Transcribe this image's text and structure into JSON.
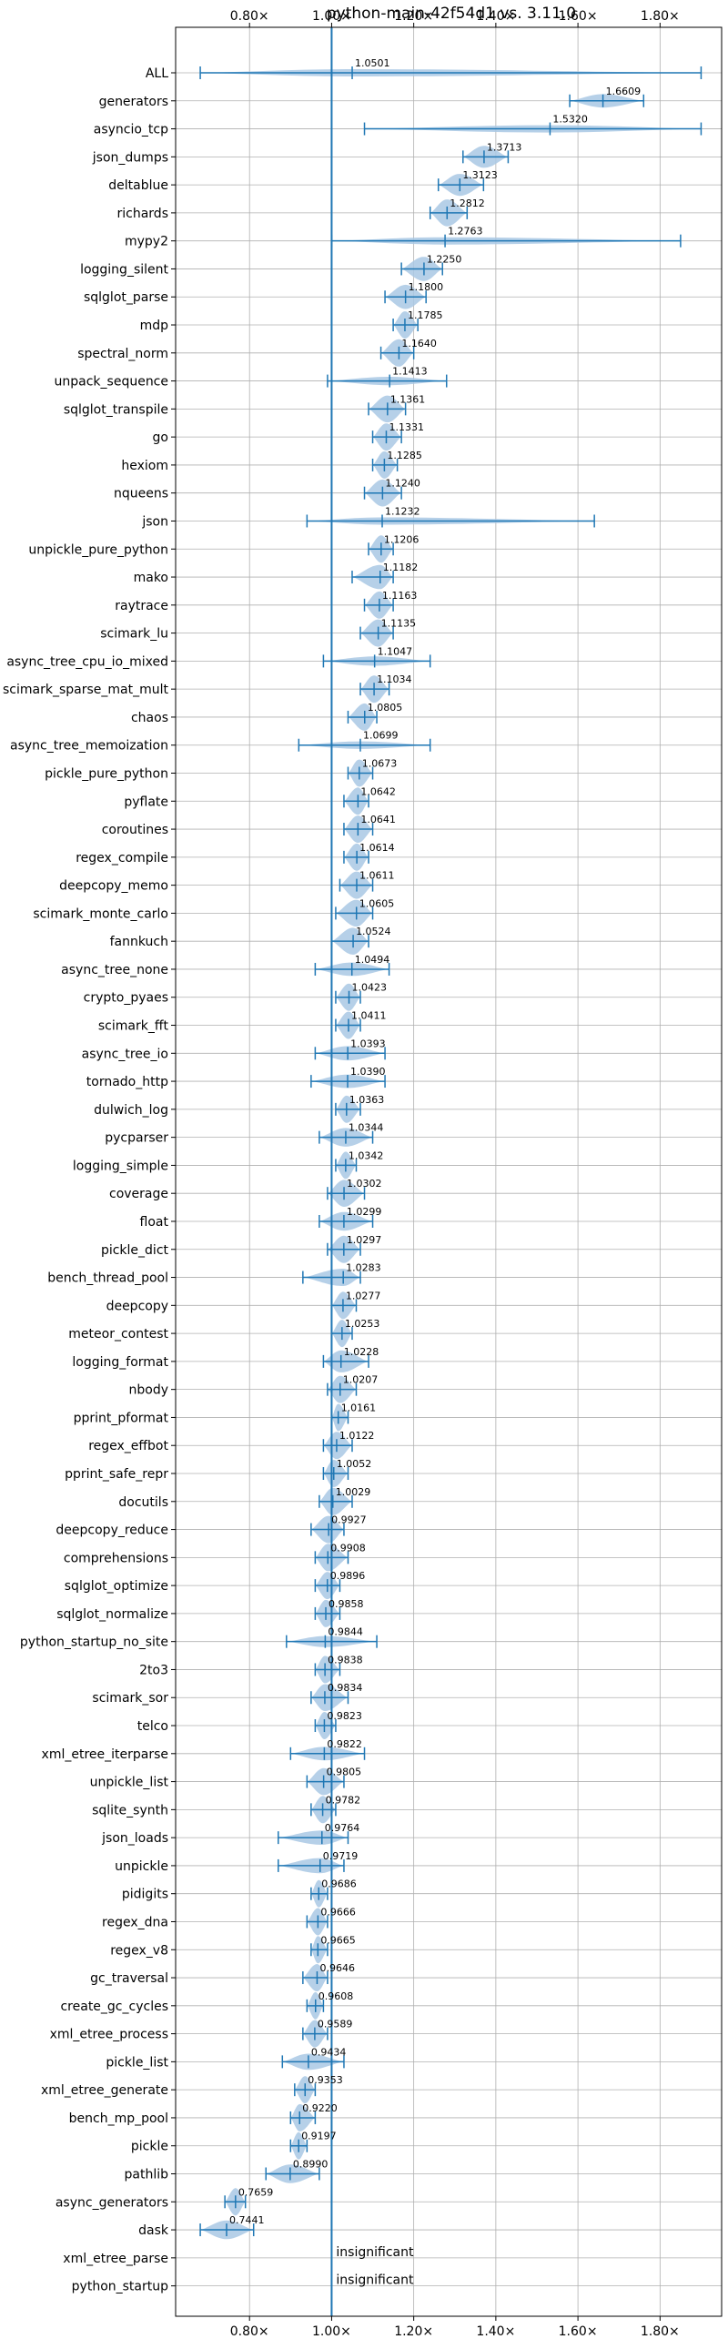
{
  "chart_data": {
    "type": "violin",
    "title": "python-main-42f54d1 vs. 3.11.0",
    "xlabel": "",
    "ylabel": "",
    "xlim": [
      0.62,
      1.95
    ],
    "x_ticks": [
      0.8,
      1.0,
      1.2,
      1.4,
      1.6,
      1.8
    ],
    "x_tick_labels": [
      "0.80×",
      "1.00×",
      "1.20×",
      "1.40×",
      "1.60×",
      "1.80×"
    ],
    "reference_line": 1.0,
    "grid": true,
    "colors": {
      "violin": "#a9c8e4",
      "stroke": "#1f77b4",
      "reference": "#1f77b4",
      "grid": "#b0b0b0"
    },
    "benchmarks": [
      {
        "name": "ALL",
        "value": 1.0501,
        "label": "1.0501",
        "min": 0.68,
        "max": 1.9
      },
      {
        "name": "generators",
        "value": 1.6609,
        "label": "1.6609",
        "min": 1.58,
        "max": 1.76
      },
      {
        "name": "asyncio_tcp",
        "value": 1.532,
        "label": "1.5320",
        "min": 1.08,
        "max": 1.9
      },
      {
        "name": "json_dumps",
        "value": 1.3713,
        "label": "1.3713",
        "min": 1.32,
        "max": 1.43
      },
      {
        "name": "deltablue",
        "value": 1.3123,
        "label": "1.3123",
        "min": 1.26,
        "max": 1.37
      },
      {
        "name": "richards",
        "value": 1.2812,
        "label": "1.2812",
        "min": 1.24,
        "max": 1.33
      },
      {
        "name": "mypy2",
        "value": 1.2763,
        "label": "1.2763",
        "min": 1.0,
        "max": 1.85
      },
      {
        "name": "logging_silent",
        "value": 1.225,
        "label": "1.2250",
        "min": 1.17,
        "max": 1.27
      },
      {
        "name": "sqlglot_parse",
        "value": 1.18,
        "label": "1.1800",
        "min": 1.13,
        "max": 1.23
      },
      {
        "name": "mdp",
        "value": 1.1785,
        "label": "1.1785",
        "min": 1.15,
        "max": 1.21
      },
      {
        "name": "spectral_norm",
        "value": 1.164,
        "label": "1.1640",
        "min": 1.12,
        "max": 1.2
      },
      {
        "name": "unpack_sequence",
        "value": 1.1413,
        "label": "1.1413",
        "min": 0.99,
        "max": 1.28
      },
      {
        "name": "sqlglot_transpile",
        "value": 1.1361,
        "label": "1.1361",
        "min": 1.09,
        "max": 1.18
      },
      {
        "name": "go",
        "value": 1.1331,
        "label": "1.1331",
        "min": 1.1,
        "max": 1.17
      },
      {
        "name": "hexiom",
        "value": 1.1285,
        "label": "1.1285",
        "min": 1.1,
        "max": 1.16
      },
      {
        "name": "nqueens",
        "value": 1.124,
        "label": "1.1240",
        "min": 1.08,
        "max": 1.17
      },
      {
        "name": "json",
        "value": 1.1232,
        "label": "1.1232",
        "min": 0.94,
        "max": 1.64
      },
      {
        "name": "unpickle_pure_python",
        "value": 1.1206,
        "label": "1.1206",
        "min": 1.09,
        "max": 1.15
      },
      {
        "name": "mako",
        "value": 1.1182,
        "label": "1.1182",
        "min": 1.05,
        "max": 1.15
      },
      {
        "name": "raytrace",
        "value": 1.1163,
        "label": "1.1163",
        "min": 1.08,
        "max": 1.15
      },
      {
        "name": "scimark_lu",
        "value": 1.1135,
        "label": "1.1135",
        "min": 1.07,
        "max": 1.15
      },
      {
        "name": "async_tree_cpu_io_mixed",
        "value": 1.1047,
        "label": "1.1047",
        "min": 0.98,
        "max": 1.24
      },
      {
        "name": "scimark_sparse_mat_mult",
        "value": 1.1034,
        "label": "1.1034",
        "min": 1.07,
        "max": 1.14
      },
      {
        "name": "chaos",
        "value": 1.0805,
        "label": "1.0805",
        "min": 1.04,
        "max": 1.11
      },
      {
        "name": "async_tree_memoization",
        "value": 1.0699,
        "label": "1.0699",
        "min": 0.92,
        "max": 1.24
      },
      {
        "name": "pickle_pure_python",
        "value": 1.0673,
        "label": "1.0673",
        "min": 1.04,
        "max": 1.1
      },
      {
        "name": "pyflate",
        "value": 1.0642,
        "label": "1.0642",
        "min": 1.03,
        "max": 1.09
      },
      {
        "name": "coroutines",
        "value": 1.0641,
        "label": "1.0641",
        "min": 1.03,
        "max": 1.1
      },
      {
        "name": "regex_compile",
        "value": 1.0614,
        "label": "1.0614",
        "min": 1.03,
        "max": 1.09
      },
      {
        "name": "deepcopy_memo",
        "value": 1.0611,
        "label": "1.0611",
        "min": 1.02,
        "max": 1.1
      },
      {
        "name": "scimark_monte_carlo",
        "value": 1.0605,
        "label": "1.0605",
        "min": 1.01,
        "max": 1.1
      },
      {
        "name": "fannkuch",
        "value": 1.0524,
        "label": "1.0524",
        "min": 1.0,
        "max": 1.09
      },
      {
        "name": "async_tree_none",
        "value": 1.0494,
        "label": "1.0494",
        "min": 0.96,
        "max": 1.14
      },
      {
        "name": "crypto_pyaes",
        "value": 1.0423,
        "label": "1.0423",
        "min": 1.01,
        "max": 1.07
      },
      {
        "name": "scimark_fft",
        "value": 1.0411,
        "label": "1.0411",
        "min": 1.01,
        "max": 1.07
      },
      {
        "name": "async_tree_io",
        "value": 1.0393,
        "label": "1.0393",
        "min": 0.96,
        "max": 1.13
      },
      {
        "name": "tornado_http",
        "value": 1.039,
        "label": "1.0390",
        "min": 0.95,
        "max": 1.13
      },
      {
        "name": "dulwich_log",
        "value": 1.0363,
        "label": "1.0363",
        "min": 1.01,
        "max": 1.07
      },
      {
        "name": "pycparser",
        "value": 1.0344,
        "label": "1.0344",
        "min": 0.97,
        "max": 1.1
      },
      {
        "name": "logging_simple",
        "value": 1.0342,
        "label": "1.0342",
        "min": 1.01,
        "max": 1.06
      },
      {
        "name": "coverage",
        "value": 1.0302,
        "label": "1.0302",
        "min": 0.99,
        "max": 1.08
      },
      {
        "name": "float",
        "value": 1.0299,
        "label": "1.0299",
        "min": 0.97,
        "max": 1.1
      },
      {
        "name": "pickle_dict",
        "value": 1.0297,
        "label": "1.0297",
        "min": 0.99,
        "max": 1.07
      },
      {
        "name": "bench_thread_pool",
        "value": 1.0283,
        "label": "1.0283",
        "min": 0.93,
        "max": 1.07
      },
      {
        "name": "deepcopy",
        "value": 1.0277,
        "label": "1.0277",
        "min": 1.0,
        "max": 1.06
      },
      {
        "name": "meteor_contest",
        "value": 1.0253,
        "label": "1.0253",
        "min": 1.0,
        "max": 1.05
      },
      {
        "name": "logging_format",
        "value": 1.0228,
        "label": "1.0228",
        "min": 0.98,
        "max": 1.09
      },
      {
        "name": "nbody",
        "value": 1.0207,
        "label": "1.0207",
        "min": 0.99,
        "max": 1.06
      },
      {
        "name": "pprint_pformat",
        "value": 1.0161,
        "label": "1.0161",
        "min": 1.0,
        "max": 1.04
      },
      {
        "name": "regex_effbot",
        "value": 1.0122,
        "label": "1.0122",
        "min": 0.98,
        "max": 1.05
      },
      {
        "name": "pprint_safe_repr",
        "value": 1.0052,
        "label": "1.0052",
        "min": 0.98,
        "max": 1.04
      },
      {
        "name": "docutils",
        "value": 1.0029,
        "label": "1.0029",
        "min": 0.97,
        "max": 1.05
      },
      {
        "name": "deepcopy_reduce",
        "value": 0.9927,
        "label": "0.9927",
        "min": 0.95,
        "max": 1.03
      },
      {
        "name": "comprehensions",
        "value": 0.9908,
        "label": "0.9908",
        "min": 0.96,
        "max": 1.04
      },
      {
        "name": "sqlglot_optimize",
        "value": 0.9896,
        "label": "0.9896",
        "min": 0.96,
        "max": 1.02
      },
      {
        "name": "sqlglot_normalize",
        "value": 0.9858,
        "label": "0.9858",
        "min": 0.96,
        "max": 1.02
      },
      {
        "name": "python_startup_no_site",
        "value": 0.9844,
        "label": "0.9844",
        "min": 0.89,
        "max": 1.11
      },
      {
        "name": "2to3",
        "value": 0.9838,
        "label": "0.9838",
        "min": 0.96,
        "max": 1.02
      },
      {
        "name": "scimark_sor",
        "value": 0.9834,
        "label": "0.9834",
        "min": 0.95,
        "max": 1.04
      },
      {
        "name": "telco",
        "value": 0.9823,
        "label": "0.9823",
        "min": 0.96,
        "max": 1.01
      },
      {
        "name": "xml_etree_iterparse",
        "value": 0.9822,
        "label": "0.9822",
        "min": 0.9,
        "max": 1.08
      },
      {
        "name": "unpickle_list",
        "value": 0.9805,
        "label": "0.9805",
        "min": 0.94,
        "max": 1.03
      },
      {
        "name": "sqlite_synth",
        "value": 0.9782,
        "label": "0.9782",
        "min": 0.95,
        "max": 1.01
      },
      {
        "name": "json_loads",
        "value": 0.9764,
        "label": "0.9764",
        "min": 0.87,
        "max": 1.04
      },
      {
        "name": "unpickle",
        "value": 0.9719,
        "label": "0.9719",
        "min": 0.87,
        "max": 1.03
      },
      {
        "name": "pidigits",
        "value": 0.9686,
        "label": "0.9686",
        "min": 0.95,
        "max": 0.99
      },
      {
        "name": "regex_dna",
        "value": 0.9666,
        "label": "0.9666",
        "min": 0.94,
        "max": 0.99
      },
      {
        "name": "regex_v8",
        "value": 0.9665,
        "label": "0.9665",
        "min": 0.95,
        "max": 0.99
      },
      {
        "name": "gc_traversal",
        "value": 0.9646,
        "label": "0.9646",
        "min": 0.93,
        "max": 0.99
      },
      {
        "name": "create_gc_cycles",
        "value": 0.9608,
        "label": "0.9608",
        "min": 0.94,
        "max": 0.98
      },
      {
        "name": "xml_etree_process",
        "value": 0.9589,
        "label": "0.9589",
        "min": 0.93,
        "max": 0.99
      },
      {
        "name": "pickle_list",
        "value": 0.9434,
        "label": "0.9434",
        "min": 0.88,
        "max": 1.03
      },
      {
        "name": "xml_etree_generate",
        "value": 0.9353,
        "label": "0.9353",
        "min": 0.91,
        "max": 0.96
      },
      {
        "name": "bench_mp_pool",
        "value": 0.922,
        "label": "0.9220",
        "min": 0.9,
        "max": 0.96
      },
      {
        "name": "pickle",
        "value": 0.9197,
        "label": "0.9197",
        "min": 0.9,
        "max": 0.94
      },
      {
        "name": "pathlib",
        "value": 0.899,
        "label": "0.8990",
        "min": 0.84,
        "max": 0.97
      },
      {
        "name": "async_generators",
        "value": 0.7659,
        "label": "0.7659",
        "min": 0.74,
        "max": 0.79
      },
      {
        "name": "dask",
        "value": 0.7441,
        "label": "0.7441",
        "min": 0.68,
        "max": 0.81
      },
      {
        "name": "xml_etree_parse",
        "value": null,
        "label": "insignificant",
        "min": null,
        "max": null
      },
      {
        "name": "python_startup",
        "value": null,
        "label": "insignificant",
        "min": null,
        "max": null
      }
    ]
  }
}
